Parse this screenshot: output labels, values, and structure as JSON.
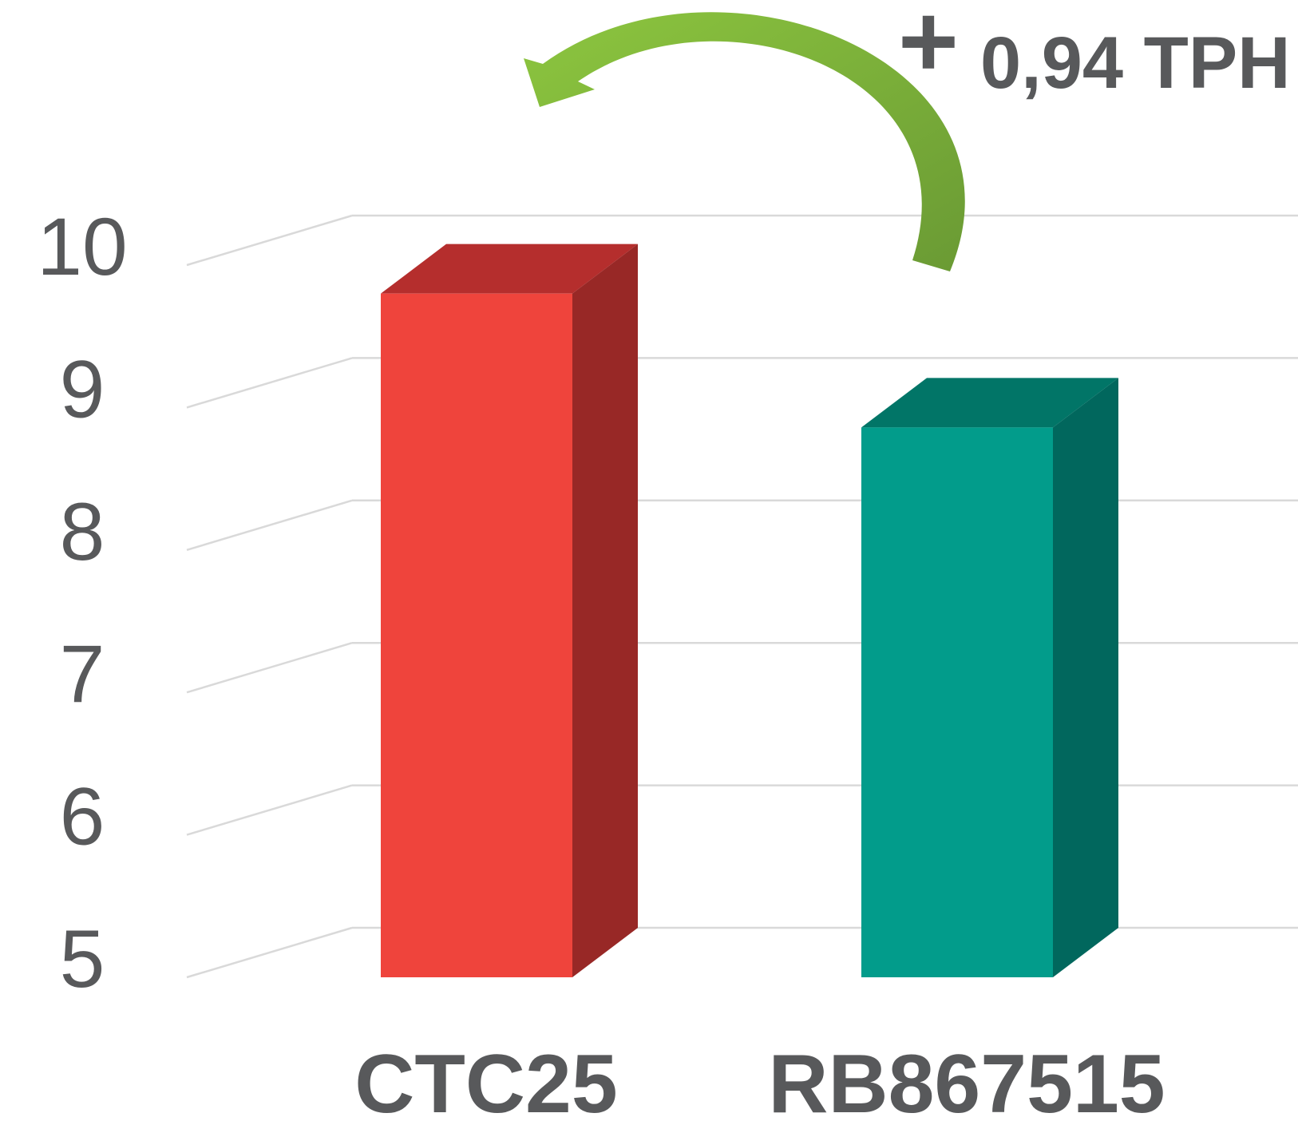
{
  "chart_data": {
    "type": "bar",
    "style": "3d",
    "categories": [
      "CTC25",
      "RB867515"
    ],
    "values": [
      9.8,
      8.86
    ],
    "colors": {
      "CTC25": {
        "front": "#ef443c",
        "side": "#982826",
        "top": "#b52e2d"
      },
      "RB867515": {
        "front": "#029c8b",
        "side": "#01675d",
        "top": "#017567"
      }
    },
    "ylim": [
      5,
      10
    ],
    "yticks": [
      "5",
      "6",
      "7",
      "8",
      "9",
      "10"
    ],
    "grid": true,
    "gridline_color": "#d9d9d9",
    "text_color": "#58595b",
    "annotation": {
      "sign": "+",
      "text": "0,94 TPH",
      "arrow": "from RB867515 to CTC25",
      "arrow_colors": [
        "#8dc63f",
        "#6a9a34"
      ]
    }
  }
}
